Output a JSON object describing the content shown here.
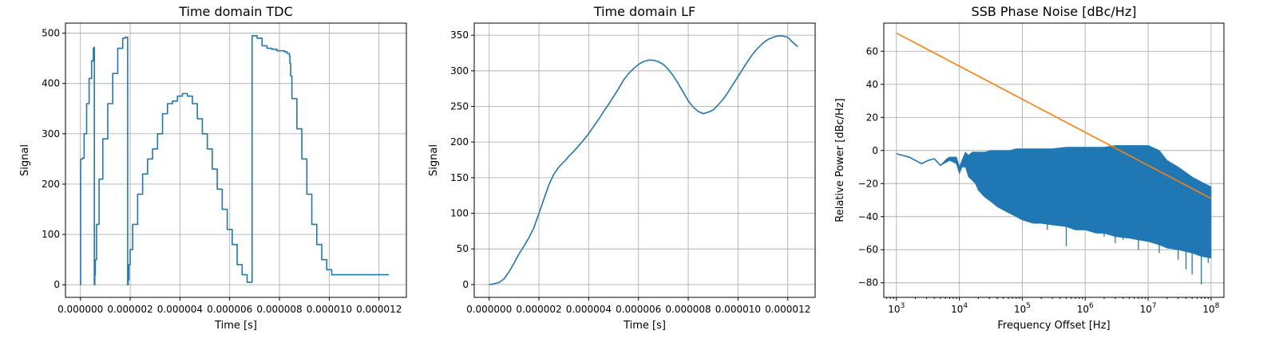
{
  "chart_data": [
    {
      "type": "line",
      "title": "Time domain TDC",
      "xlabel": "Time [s]",
      "ylabel": "Signal",
      "xscale": "linear",
      "xlim": [
        -6e-07,
        1.31e-05
      ],
      "ylim": [
        -25,
        520
      ],
      "grid": true,
      "xticks": [
        0,
        2e-06,
        4e-06,
        6e-06,
        8e-06,
        1e-05,
        1.2e-05
      ],
      "xtick_labels": [
        "0.000000",
        "0.000002",
        "0.000004",
        "0.000006",
        "0.000008",
        "0.000010",
        "0.000012"
      ],
      "yticks": [
        0,
        100,
        200,
        300,
        400,
        500
      ],
      "ytick_labels": [
        "0",
        "100",
        "200",
        "300",
        "400",
        "500"
      ],
      "series": [
        {
          "color": "#1f77b4",
          "step": true,
          "x": [
            0,
            1e-08,
            1e-07,
            1.5e-07,
            2.5e-07,
            3.5e-07,
            4.5e-07,
            5.2e-07,
            5.5e-07,
            5.6e-07,
            5.8e-07,
            6e-07,
            6.5e-07,
            7.5e-07,
            9e-07,
            1.1e-06,
            1.3e-06,
            1.5e-06,
            1.7e-06,
            1.8e-06,
            1.9e-06,
            1.92e-06,
            1.95e-06,
            2e-06,
            2.1e-06,
            2.3e-06,
            2.5e-06,
            2.7e-06,
            2.9e-06,
            3.1e-06,
            3.3e-06,
            3.5e-06,
            3.7e-06,
            3.9e-06,
            4.1e-06,
            4.3e-06,
            4.5e-06,
            4.7e-06,
            4.9e-06,
            5.1e-06,
            5.3e-06,
            5.5e-06,
            5.7e-06,
            5.9e-06,
            6.1e-06,
            6.3e-06,
            6.5e-06,
            6.7e-06,
            6.9e-06,
            7.1e-06,
            7.3e-06,
            7.5e-06,
            7.7e-06,
            7.9e-06,
            8.1e-06,
            8.2e-06,
            8.3e-06,
            8.4e-06,
            8.42e-06,
            8.45e-06,
            8.5e-06,
            8.7e-06,
            8.9e-06,
            9.1e-06,
            9.3e-06,
            9.5e-06,
            9.7e-06,
            9.9e-06,
            1.01e-05,
            1.03e-05,
            1.05e-05,
            1.07e-05,
            1.09e-05,
            1.11e-05,
            1.13e-05,
            1.15e-05,
            1.17e-05,
            1.19e-05,
            1.21e-05,
            1.23e-05,
            1.24e-05
          ],
          "y": [
            0,
            250,
            252,
            300,
            360,
            410,
            445,
            470,
            472,
            0,
            20,
            50,
            120,
            210,
            290,
            360,
            420,
            470,
            490,
            492,
            0,
            10,
            40,
            70,
            120,
            180,
            220,
            250,
            270,
            300,
            340,
            360,
            365,
            375,
            380,
            375,
            360,
            330,
            300,
            270,
            230,
            190,
            150,
            110,
            80,
            40,
            20,
            5,
            495,
            490,
            475,
            470,
            468,
            465,
            465,
            463,
            460,
            455,
            440,
            415,
            370,
            310,
            250,
            180,
            120,
            80,
            50,
            30,
            20,
            20,
            20,
            20,
            20,
            20,
            20,
            20,
            20,
            20,
            20,
            20,
            20
          ]
        }
      ]
    },
    {
      "type": "line",
      "title": "Time domain LF",
      "xlabel": "Time [s]",
      "ylabel": "Signal",
      "xscale": "linear",
      "xlim": [
        -6e-07,
        1.31e-05
      ],
      "ylim": [
        -18,
        367
      ],
      "grid": true,
      "xticks": [
        0,
        2e-06,
        4e-06,
        6e-06,
        8e-06,
        1e-05,
        1.2e-05
      ],
      "xtick_labels": [
        "0.000000",
        "0.000002",
        "0.000004",
        "0.000006",
        "0.000008",
        "0.000010",
        "0.000012"
      ],
      "yticks": [
        0,
        50,
        100,
        150,
        200,
        250,
        300,
        350
      ],
      "ytick_labels": [
        "0",
        "50",
        "100",
        "150",
        "200",
        "250",
        "300",
        "350"
      ],
      "series": [
        {
          "color": "#1f77b4",
          "step": false,
          "x": [
            0,
            2e-07,
            4e-07,
            6e-07,
            8e-07,
            1e-06,
            1.2e-06,
            1.4e-06,
            1.6e-06,
            1.8e-06,
            2e-06,
            2.2e-06,
            2.4e-06,
            2.6e-06,
            2.8e-06,
            3e-06,
            3.2e-06,
            3.4e-06,
            3.6e-06,
            3.8e-06,
            4e-06,
            4.2e-06,
            4.4e-06,
            4.6e-06,
            4.8e-06,
            5e-06,
            5.2e-06,
            5.4e-06,
            5.6e-06,
            5.8e-06,
            6e-06,
            6.2e-06,
            6.4e-06,
            6.6e-06,
            6.8e-06,
            7e-06,
            7.2e-06,
            7.4e-06,
            7.6e-06,
            7.8e-06,
            8e-06,
            8.2e-06,
            8.4e-06,
            8.6e-06,
            8.8e-06,
            9e-06,
            9.2e-06,
            9.4e-06,
            9.6e-06,
            9.8e-06,
            1e-05,
            1.02e-05,
            1.04e-05,
            1.06e-05,
            1.08e-05,
            1.1e-05,
            1.12e-05,
            1.14e-05,
            1.16e-05,
            1.18e-05,
            1.2e-05,
            1.22e-05,
            1.24e-05
          ],
          "y": [
            0,
            1,
            3,
            8,
            18,
            30,
            43,
            54,
            66,
            80,
            100,
            120,
            140,
            155,
            165,
            172,
            180,
            187,
            195,
            203,
            212,
            222,
            232,
            243,
            253,
            264,
            275,
            287,
            296,
            303,
            309,
            313,
            315,
            315,
            313,
            309,
            302,
            293,
            282,
            270,
            258,
            249,
            243,
            240,
            242,
            245,
            252,
            260,
            270,
            281,
            292,
            303,
            314,
            324,
            332,
            339,
            344,
            347,
            349,
            349,
            347,
            340,
            334
          ]
        }
      ]
    },
    {
      "type": "line",
      "title": "SSB Phase Noise [dBc/Hz]",
      "xlabel": "Frequency Offset [Hz]",
      "ylabel": "Relative Power [dBc/Hz]",
      "xscale": "log",
      "xlim": [
        630,
        160000000
      ],
      "ylim": [
        -88.8,
        77
      ],
      "grid": true,
      "xticks": [
        1000,
        10000,
        100000,
        1000000,
        10000000,
        100000000
      ],
      "xtick_labels": [
        {
          "base": "10",
          "exp": "3"
        },
        {
          "base": "10",
          "exp": "4"
        },
        {
          "base": "10",
          "exp": "5"
        },
        {
          "base": "10",
          "exp": "6"
        },
        {
          "base": "10",
          "exp": "7"
        },
        {
          "base": "10",
          "exp": "8"
        }
      ],
      "yticks": [
        -80,
        -60,
        -40,
        -20,
        0,
        20,
        40,
        60
      ],
      "ytick_labels": [
        "−80",
        "−60",
        "−40",
        "−20",
        "0",
        "20",
        "40",
        "60"
      ],
      "series": [
        {
          "color": "#1f77b4",
          "step": false,
          "noise_band": true,
          "x": [
            1000,
            1600,
            2500,
            3200,
            4000,
            5000,
            6300,
            7000,
            8000,
            9000,
            10000,
            11000,
            12500,
            14000,
            16000,
            18000,
            20000,
            25000,
            32000,
            40000,
            50000,
            63000,
            80000,
            100000,
            150000,
            200000,
            300000,
            500000,
            700000,
            1000000,
            1500000,
            2000000,
            3000000,
            5000000,
            7000000,
            10000000,
            15000000,
            20000000,
            30000000,
            50000000,
            70000000,
            100000000
          ],
          "y": [
            -2,
            -4,
            -8,
            -6,
            -5,
            -9,
            -6,
            -5,
            -6,
            -6,
            -12,
            -8,
            -5,
            -10,
            -6,
            -7,
            -9,
            -6,
            -8,
            -6,
            -7,
            -9,
            -5,
            -6,
            -5,
            -6,
            -4,
            -5,
            -3,
            -3,
            -2,
            -1,
            -1,
            0,
            0,
            1,
            -3,
            -8,
            -12,
            -18,
            -20,
            -23
          ],
          "band_low": [
            -2,
            -4,
            -8,
            -6,
            -5,
            -9,
            -7,
            -6,
            -7,
            -8,
            -14,
            -10,
            -10,
            -16,
            -18,
            -20,
            -24,
            -28,
            -31,
            -34,
            -36,
            -38,
            -40,
            -42,
            -44,
            -44,
            -45,
            -46,
            -48,
            -48,
            -50,
            -50,
            -52,
            -53,
            -54,
            -55,
            -57,
            -59,
            -60,
            -62,
            -64,
            -65
          ],
          "band_high": [
            -2,
            -4,
            -8,
            -6,
            -5,
            -9,
            -5,
            -4,
            -4,
            -4,
            -10,
            -6,
            -1,
            -3,
            -1,
            -1,
            -1,
            -1,
            0,
            0,
            0,
            0,
            1,
            1,
            1,
            1,
            1,
            2,
            2,
            2,
            2,
            2,
            3,
            3,
            3,
            3,
            0,
            -6,
            -10,
            -16,
            -19,
            -22
          ],
          "spikes": [
            [
              2000000,
              -52
            ],
            [
              3000000,
              -56
            ],
            [
              4000000,
              -54
            ],
            [
              7000000,
              -60
            ],
            [
              15000000,
              -62
            ],
            [
              30000000,
              -66
            ],
            [
              50000000,
              -75
            ],
            [
              70000000,
              -81
            ],
            [
              90000000,
              -68
            ],
            [
              40000000,
              -72
            ],
            [
              500000,
              -58
            ],
            [
              250000,
              -48
            ]
          ]
        },
        {
          "color": "#ff7f0e",
          "step": false,
          "x": [
            1000,
            100000000
          ],
          "y": [
            71,
            -29
          ]
        }
      ]
    }
  ]
}
